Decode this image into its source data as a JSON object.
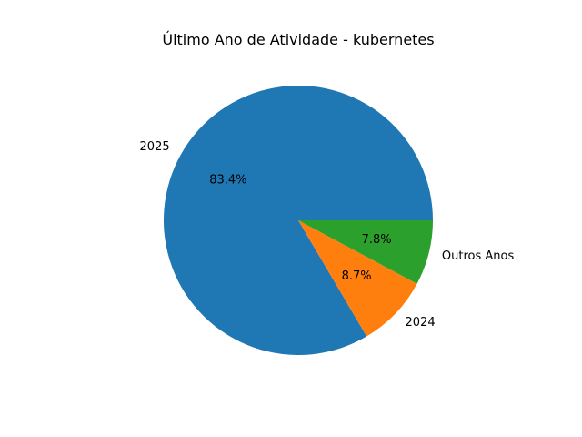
{
  "chart_data": {
    "type": "pie",
    "title": "Último Ano de Atividade - kubernetes",
    "categories": [
      "2025",
      "2024",
      "Outros Anos"
    ],
    "values": [
      83.4,
      8.7,
      7.8
    ],
    "value_labels": [
      "83.4%",
      "8.7%",
      "7.8%"
    ],
    "colors": [
      "#1f77b4",
      "#ff7f0e",
      "#2ca02c"
    ],
    "legend": "none",
    "start_angle_deg": 0,
    "direction": "counterclockwise"
  }
}
